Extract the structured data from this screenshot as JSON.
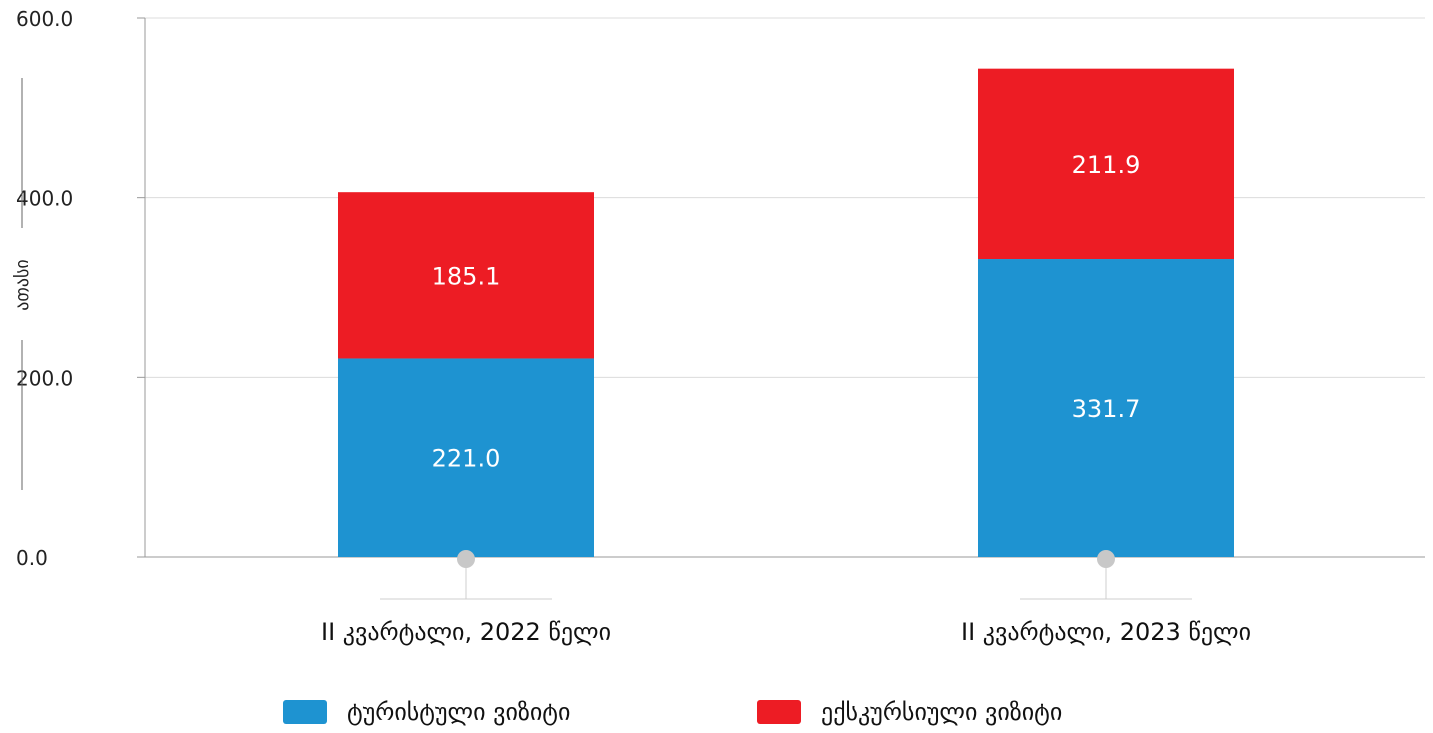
{
  "chart_data": {
    "type": "bar",
    "stacked": true,
    "categories": [
      "II კვარტალი, 2022 წელი",
      "II კვარტალი, 2023 წელი"
    ],
    "series": [
      {
        "name": "ტურისტული ვიზიტი",
        "values": [
          221.0,
          331.7
        ],
        "labels": [
          "221.0",
          "331.7"
        ],
        "color": "#1e93d1"
      },
      {
        "name": "ექსკურსიული ვიზიტი",
        "values": [
          185.1,
          211.9
        ],
        "labels": [
          "185.1",
          "211.9"
        ],
        "color": "#ed1c24"
      }
    ],
    "ylabel": "ათასი",
    "ylim": [
      0,
      600
    ],
    "yticks": [
      "0.0",
      "200.0",
      "400.0",
      "600.0"
    ],
    "ytick_values": [
      0,
      200,
      400,
      600
    ],
    "grid": true,
    "legend_position": "bottom"
  }
}
